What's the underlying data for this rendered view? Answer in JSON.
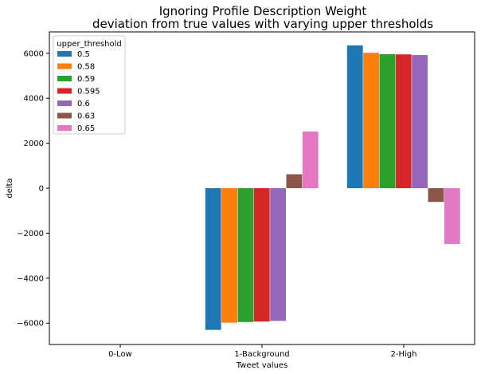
{
  "chart_data": {
    "type": "bar",
    "title": "Ignoring Profile Description Weight",
    "subtitle": "deviation from true values with varying upper thresholds",
    "xlabel": "Tweet values",
    "ylabel": "delta",
    "categories": [
      "0-Low",
      "1-Background",
      "2-High"
    ],
    "ylim": [
      -6950,
      6950
    ],
    "yticks": [
      -6000,
      -4000,
      -2000,
      0,
      2000,
      4000,
      6000
    ],
    "legend": {
      "title": "upper_threshold",
      "placement": "top-left"
    },
    "grid": false,
    "series": [
      {
        "name": "0.5",
        "color": "#1f77b4",
        "values": [
          0,
          -6300,
          6350
        ]
      },
      {
        "name": "0.58",
        "color": "#ff7f0e",
        "values": [
          0,
          -5980,
          6020
        ]
      },
      {
        "name": "0.59",
        "color": "#2ca02c",
        "values": [
          0,
          -5950,
          5960
        ]
      },
      {
        "name": "0.595",
        "color": "#d62728",
        "values": [
          0,
          -5930,
          5950
        ]
      },
      {
        "name": "0.6",
        "color": "#9467bd",
        "values": [
          0,
          -5900,
          5920
        ]
      },
      {
        "name": "0.63",
        "color": "#8c564b",
        "values": [
          0,
          620,
          -610
        ]
      },
      {
        "name": "0.65",
        "color": "#e377c2",
        "values": [
          0,
          2520,
          -2480
        ]
      }
    ]
  }
}
